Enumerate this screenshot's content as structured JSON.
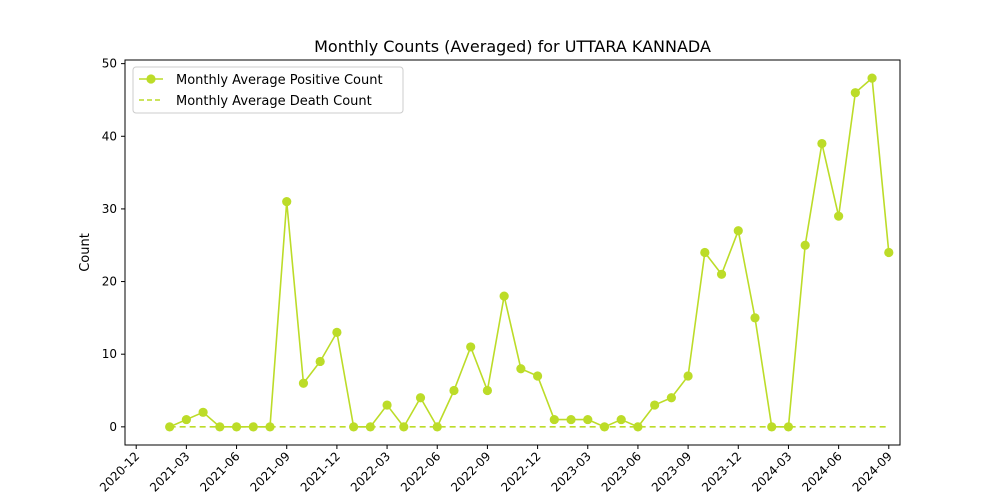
{
  "chart_data": {
    "type": "line",
    "title": "Monthly Counts (Averaged) for UTTARA KANNADA",
    "xlabel": "",
    "ylabel": "Count",
    "ylim": [
      -2.5,
      50.5
    ],
    "xlim": [
      "2020-12",
      "2024-09"
    ],
    "grid": false,
    "legend_position": "top-left",
    "x": [
      "2021-02",
      "2021-03",
      "2021-04",
      "2021-05",
      "2021-06",
      "2021-07",
      "2021-08",
      "2021-09",
      "2021-10",
      "2021-11",
      "2021-12",
      "2022-01",
      "2022-02",
      "2022-03",
      "2022-04",
      "2022-05",
      "2022-06",
      "2022-07",
      "2022-08",
      "2022-09",
      "2022-10",
      "2022-11",
      "2022-12",
      "2023-01",
      "2023-02",
      "2023-03",
      "2023-04",
      "2023-05",
      "2023-06",
      "2023-07",
      "2023-08",
      "2023-09",
      "2023-10",
      "2023-11",
      "2023-12",
      "2024-01",
      "2024-02",
      "2024-03",
      "2024-04",
      "2024-05",
      "2024-06",
      "2024-07",
      "2024-08",
      "2024-09"
    ],
    "series": [
      {
        "name": "Monthly Average Positive Count",
        "style": "solid-marker",
        "color": "#bcdc28",
        "values": [
          0,
          1,
          2,
          0,
          0,
          0,
          0,
          31,
          6,
          9,
          13,
          0,
          0,
          3,
          0,
          4,
          0,
          5,
          11,
          5,
          18,
          8,
          7,
          1,
          1,
          1,
          0,
          1,
          0,
          3,
          4,
          7,
          24,
          21,
          27,
          15,
          0,
          0,
          25,
          39,
          29,
          46,
          48,
          24
        ]
      },
      {
        "name": "Monthly Average Death Count",
        "style": "dashed",
        "color": "#bcdc28",
        "values": [
          0,
          0,
          0,
          0,
          0,
          0,
          0,
          0,
          0,
          0,
          0,
          0,
          0,
          0,
          0,
          0,
          0,
          0,
          0,
          0,
          0,
          0,
          0,
          0,
          0,
          0,
          0,
          0,
          0,
          0,
          0,
          0,
          0,
          0,
          0,
          0,
          0,
          0,
          0,
          0,
          0,
          0,
          0,
          0
        ]
      }
    ],
    "y_ticks": [
      0,
      10,
      20,
      30,
      40,
      50
    ],
    "x_ticks": [
      "2020-12",
      "2021-03",
      "2021-06",
      "2021-09",
      "2021-12",
      "2022-03",
      "2022-06",
      "2022-09",
      "2022-12",
      "2023-03",
      "2023-06",
      "2023-09",
      "2023-12",
      "2024-03",
      "2024-06",
      "2024-09"
    ]
  }
}
